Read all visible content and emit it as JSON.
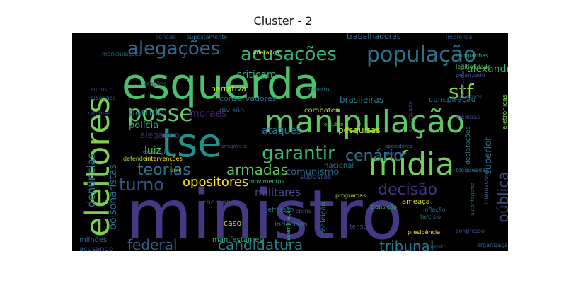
{
  "title": "Cluster - 2",
  "words": [
    {
      "text": "ministro",
      "color": "#443a83"
    },
    {
      "text": "esquerda",
      "color": "#4ac16d"
    },
    {
      "text": "eleitores",
      "color": "#7ad151"
    },
    {
      "text": "tse",
      "color": "#21918c"
    },
    {
      "text": "manipulação",
      "color": "#5ec962"
    },
    {
      "text": "mídia",
      "color": "#73d056"
    },
    {
      "text": "população",
      "color": "#2c728e"
    },
    {
      "text": "alegações",
      "color": "#31688e"
    },
    {
      "text": "acusações",
      "color": "#35b779"
    },
    {
      "text": "posse",
      "color": "#63cb5f"
    },
    {
      "text": "garantir",
      "color": "#3bbb75"
    },
    {
      "text": "stf",
      "color": "#8fd744"
    },
    {
      "text": "cenário",
      "color": "#2a788e"
    },
    {
      "text": "teorias",
      "color": "#2c728e"
    },
    {
      "text": "armadas",
      "color": "#5ec962"
    },
    {
      "text": "turno",
      "color": "#39558c"
    },
    {
      "text": "federal",
      "color": "#34618d"
    },
    {
      "text": "candidatura",
      "color": "#25848e"
    },
    {
      "text": "tribunal",
      "color": "#2a788e"
    },
    {
      "text": "decisão",
      "color": "#46327e"
    },
    {
      "text": "pública",
      "color": "#3f4788"
    },
    {
      "text": "opositores",
      "color": "#fde725"
    },
    {
      "text": "militares",
      "color": "#3e4989"
    },
    {
      "text": "denúncias",
      "color": "#2a788e"
    },
    {
      "text": "bolsonaristas",
      "color": "#2e6e8e"
    },
    {
      "text": "criticam",
      "color": "#2fb47c"
    },
    {
      "text": "partido",
      "color": "#2c728e"
    },
    {
      "text": "moraes",
      "color": "#481f70"
    },
    {
      "text": "polícia",
      "color": "#2fb47c"
    },
    {
      "text": "alegando",
      "color": "#472d7b"
    },
    {
      "text": "luiz",
      "color": "#52c569"
    },
    {
      "text": "ataques",
      "color": "#2a788e"
    },
    {
      "text": "pesquisas",
      "color": "#c2df23"
    },
    {
      "text": "comunismo",
      "color": "#31688e"
    },
    {
      "text": "alexandre",
      "color": "#35b779"
    },
    {
      "text": "superior",
      "color": "#2e6e8e"
    },
    {
      "text": "conservadores",
      "color": "#2c728e"
    },
    {
      "text": "combater",
      "color": "#b5de2b"
    },
    {
      "text": "brasileiras",
      "color": "#287d8e"
    },
    {
      "text": "conspiração",
      "color": "#2c728e"
    },
    {
      "text": "narrativa",
      "color": "#c2df23"
    },
    {
      "text": "divisão",
      "color": "#38588c"
    },
    {
      "text": "nacional",
      "color": "#2c728e"
    },
    {
      "text": "supostas",
      "color": "#3e4989"
    },
    {
      "text": "ameaça",
      "color": "#e5e419"
    },
    {
      "text": "chamando",
      "color": "#3b528b"
    },
    {
      "text": "jefferson",
      "color": "#2c728e"
    },
    {
      "text": "caso",
      "color": "#b5de2b"
    },
    {
      "text": "manifestantes",
      "color": "#35b779"
    },
    {
      "text": "indecisos",
      "color": "#2a788e"
    },
    {
      "text": "tenso",
      "color": "#3e4989"
    },
    {
      "text": "trabalhadores",
      "color": "#2c728e"
    },
    {
      "text": "candidato",
      "color": "#3e4989"
    },
    {
      "text": "declarações",
      "color": "#2a788e"
    },
    {
      "text": "milhões",
      "color": "#31688e"
    },
    {
      "text": "acusando",
      "color": "#39568c"
    },
    {
      "text": "reeleição",
      "color": "#21918c"
    },
    {
      "text": "transição",
      "color": "#35b779"
    },
    {
      "text": "inflação",
      "color": "#31688e"
    },
    {
      "text": "tarcísio",
      "color": "#2c728e"
    },
    {
      "text": "presidência",
      "color": "#fde725"
    },
    {
      "text": "congresso",
      "color": "#3e4989"
    },
    {
      "text": "infraestrutura",
      "color": "#8fd744"
    },
    {
      "text": "organização",
      "color": "#31688e"
    },
    {
      "text": "orçamento",
      "color": "#3e4989"
    },
    {
      "text": "disseminação",
      "color": "#35b779"
    },
    {
      "text": "crime",
      "color": "#3e4989"
    },
    {
      "text": "programas",
      "color": "#b5de2b"
    },
    {
      "text": "movimentos",
      "color": "#35b779"
    },
    {
      "text": "intervenções",
      "color": "#fde725"
    },
    {
      "text": "defendem",
      "color": "#a0da39"
    },
    {
      "text": "estratégia",
      "color": "#21918c"
    },
    {
      "text": "unir",
      "color": "#7ad151"
    },
    {
      "text": "outubro",
      "color": "#52c569"
    },
    {
      "text": "medidas",
      "color": "#3e4989"
    },
    {
      "text": "bloqueada",
      "color": "#2c728e"
    },
    {
      "text": "legitimidade",
      "color": "#5ec962"
    },
    {
      "text": "polarizado",
      "color": "#3e4989"
    },
    {
      "text": "governos",
      "color": "#31688e"
    },
    {
      "text": "campanhas",
      "color": "#35b779"
    },
    {
      "text": "eletrônicas",
      "color": "#7ad151"
    },
    {
      "text": "imprensa",
      "color": "#38588c"
    },
    {
      "text": "senado",
      "color": "#3b528b"
    },
    {
      "text": "supostamente",
      "color": "#2a788e"
    },
    {
      "text": "liderança",
      "color": "#fde725"
    },
    {
      "text": "manipulações",
      "color": "#2c728e"
    },
    {
      "text": "reações",
      "color": "#3e4989"
    },
    {
      "text": "roberto",
      "color": "#2a788e"
    },
    {
      "text": "suposto",
      "color": "#3e4989"
    },
    {
      "text": "cidadãos",
      "color": "#31688e"
    },
    {
      "text": "regimes",
      "color": "#3e4989"
    },
    {
      "text": "amigáveis",
      "color": "#3e4989"
    },
    {
      "text": "internacional",
      "color": "#31688e"
    },
    {
      "text": "autoritarismo",
      "color": "#2c728e"
    },
    {
      "text": "perseguição",
      "color": "#3e4989"
    },
    {
      "text": "gabinete",
      "color": "#3e4989"
    },
    {
      "text": "apoiadores",
      "color": "#31688e"
    }
  ]
}
